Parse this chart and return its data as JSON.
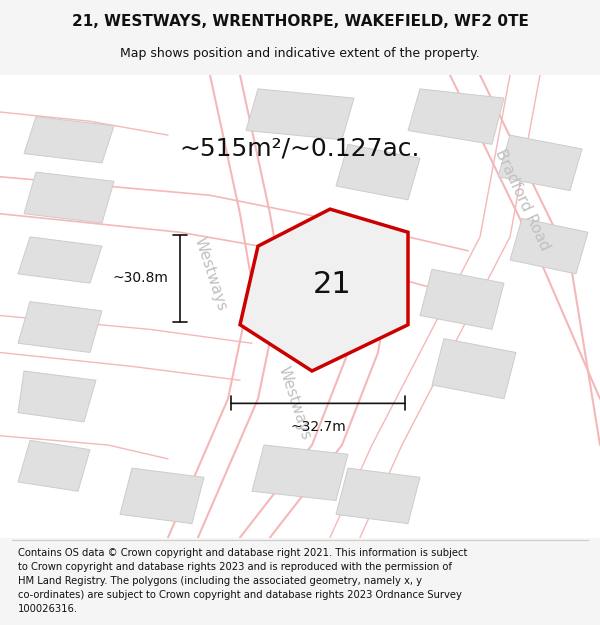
{
  "title": "21, WESTWAYS, WRENTHORPE, WAKEFIELD, WF2 0TE",
  "subtitle": "Map shows position and indicative extent of the property.",
  "area_text": "~515m²/~0.127ac.",
  "label_21": "21",
  "dim_vertical": "~30.8m",
  "dim_horizontal": "~32.7m",
  "road_label_left": "Westways",
  "road_label_right": "Bradford Road",
  "footer_lines": [
    "Contains OS data © Crown copyright and database right 2021. This information is subject",
    "to Crown copyright and database rights 2023 and is reproduced with the permission of",
    "HM Land Registry. The polygons (including the associated geometry, namely x, y",
    "co-ordinates) are subject to Crown copyright and database rights 2023 Ordnance Survey",
    "100026316."
  ],
  "bg_color": "#f5f5f5",
  "map_bg": "#ffffff",
  "road_color": "#f5b8b8",
  "building_color": "#e0e0e0",
  "building_edge": "#cccccc",
  "property_color": "#f0f0f0",
  "property_edge": "#cc0000",
  "dim_line_color": "#111111",
  "text_color": "#111111",
  "title_fontsize": 11,
  "subtitle_fontsize": 9,
  "area_fontsize": 18,
  "label_fontsize": 22,
  "dim_fontsize": 10,
  "road_fontsize": 11,
  "footer_fontsize": 7.2
}
